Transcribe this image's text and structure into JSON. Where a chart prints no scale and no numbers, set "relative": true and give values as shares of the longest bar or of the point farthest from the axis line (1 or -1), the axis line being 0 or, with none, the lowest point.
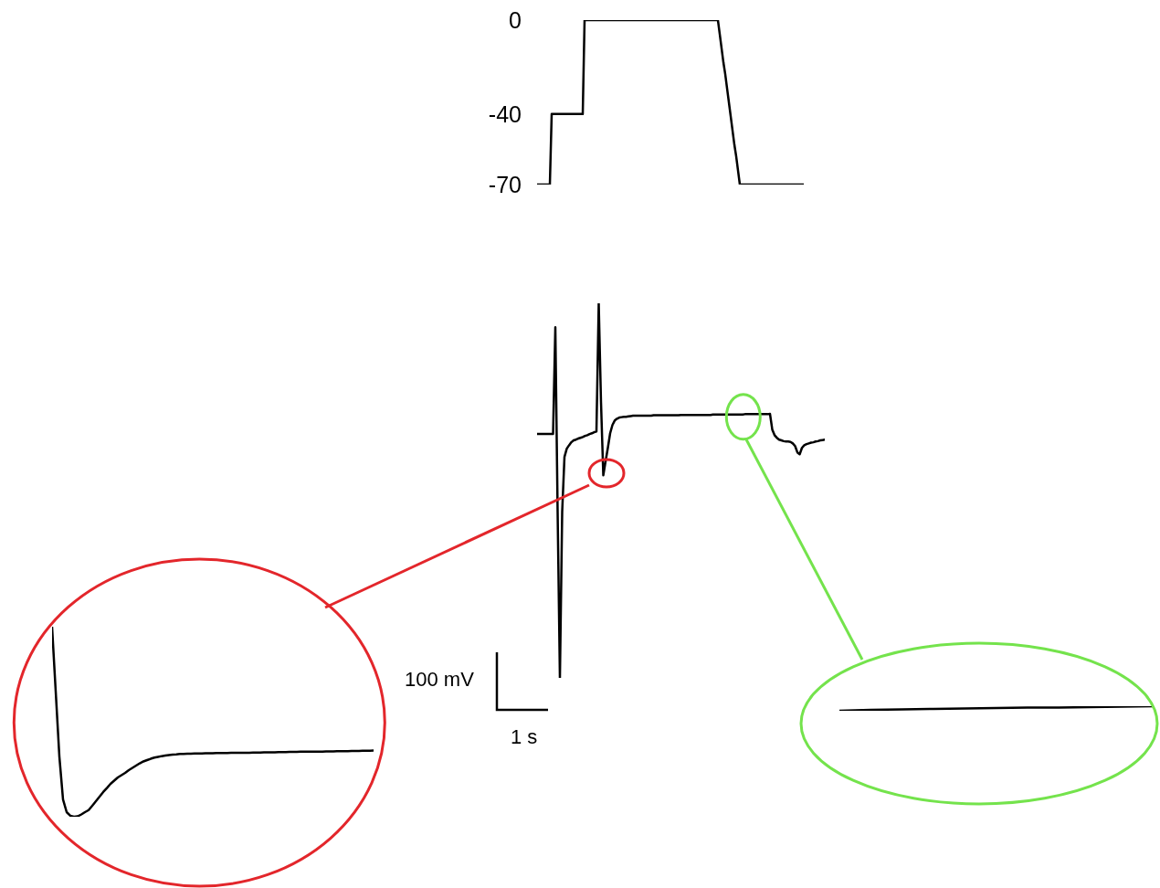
{
  "chart_data": [
    {
      "type": "line",
      "categories": [
        null,
        null,
        null,
        null,
        null,
        null,
        null,
        null,
        null,
        null,
        null,
        null,
        null,
        null,
        null,
        null,
        null,
        null,
        null,
        null,
        null,
        null,
        null,
        null,
        null,
        null,
        null,
        null,
        null,
        null,
        null,
        null,
        null,
        null,
        null,
        null,
        null,
        null,
        null,
        null,
        null,
        null,
        null,
        null,
        null,
        null,
        null,
        null,
        null,
        null,
        null,
        null,
        null,
        null,
        null,
        null,
        null,
        null,
        null,
        null,
        null,
        null,
        null,
        null,
        null,
        null,
        null,
        null,
        null,
        null,
        null,
        null,
        null,
        null,
        null,
        null,
        null,
        null,
        null,
        null,
        null,
        null,
        null,
        null,
        null,
        null,
        null,
        null,
        null,
        null,
        null,
        null,
        null,
        null,
        null,
        null,
        null,
        null,
        null,
        null,
        null,
        null,
        null,
        null,
        null,
        null,
        null,
        null,
        null,
        null,
        null,
        null,
        null,
        null,
        null,
        null,
        null,
        null,
        null,
        null,
        null,
        null,
        null,
        null,
        null,
        null,
        null,
        null,
        null,
        null,
        null,
        null,
        null,
        null,
        null,
        null,
        null,
        null,
        null,
        null,
        null,
        null,
        null,
        null,
        null,
        null,
        null
      ],
      "values": [
        -70,
        -70,
        -70,
        -70,
        -70,
        -70,
        -70,
        -70,
        -40,
        -40,
        -40,
        -40,
        -40,
        -40,
        -40,
        -40,
        -40,
        -40,
        -40,
        -40,
        -40,
        -40,
        -40,
        -40,
        -40,
        -40,
        0,
        0,
        0,
        0,
        0,
        0,
        0,
        0,
        0,
        0,
        0,
        0,
        0,
        0,
        0,
        0,
        0,
        0,
        0,
        0,
        0,
        0,
        0,
        0,
        0,
        0,
        0,
        0,
        0,
        0,
        0,
        0,
        0,
        0,
        0,
        0,
        0,
        0,
        0,
        0,
        0,
        0,
        0,
        0,
        0,
        0,
        0,
        0,
        0,
        0,
        0,
        0,
        0,
        0,
        0,
        0,
        0,
        0,
        0,
        0,
        0,
        0,
        0,
        0,
        0,
        0,
        0,
        0,
        0,
        0,
        0,
        0,
        0,
        0,
        -6,
        -12,
        -18,
        -23,
        -29,
        -35,
        -41,
        -47,
        -53,
        -58,
        -64,
        -70,
        -70,
        -70,
        -70,
        -70,
        -70,
        -70,
        -70,
        -70,
        -70,
        -70,
        -70,
        -70,
        -70,
        -70,
        -70,
        -70,
        -70,
        -70,
        -70,
        -70,
        -70,
        -70,
        -70,
        -70,
        -70,
        -70,
        -70,
        -70,
        -70,
        -70,
        -70,
        -70,
        -70,
        -70,
        -70
      ],
      "color": "#000000",
      "ylim": [
        -70,
        0
      ],
      "yticks": [
        0,
        -40,
        -70
      ],
      "tick_labels": "y"
    },
    {
      "type": "line",
      "relative": true,
      "categories": [
        null,
        null,
        null,
        null,
        null,
        null,
        null,
        null,
        null,
        null,
        null,
        null,
        null,
        null,
        null,
        null,
        null,
        null,
        null,
        null,
        null,
        null,
        null,
        null,
        null,
        null,
        null,
        null,
        null,
        null,
        null,
        null,
        null,
        null,
        null,
        null,
        null,
        null,
        null,
        null,
        null,
        null,
        null,
        null,
        null,
        null,
        null,
        null,
        null,
        null,
        null,
        null,
        null,
        null,
        null,
        null,
        null,
        null,
        null,
        null,
        null,
        null,
        null,
        null,
        null,
        null,
        null,
        null,
        null,
        null,
        null,
        null,
        null,
        null,
        null,
        null,
        null,
        null,
        null,
        null,
        null,
        null,
        null,
        null,
        null,
        null,
        null,
        null,
        null,
        null,
        null,
        null,
        null,
        null,
        null,
        null,
        null,
        null,
        null,
        null,
        null,
        null,
        null,
        null,
        null,
        null,
        null,
        null,
        null,
        null,
        null,
        null,
        null,
        null,
        null,
        null,
        null,
        null,
        null,
        null,
        null,
        null,
        null,
        null,
        null,
        null,
        null
      ],
      "values": [
        0.651,
        0.651,
        0.651,
        0.651,
        0.651,
        0.651,
        0.651,
        0.651,
        0.936,
        0.444,
        0,
        0.444,
        0.59,
        0.612,
        0.621,
        0.629,
        0.634,
        0.636,
        0.639,
        0.641,
        0.643,
        0.646,
        0.648,
        0.651,
        0.653,
        0.656,
        0.658,
        1,
        0.736,
        0.541,
        0.578,
        0.614,
        0.653,
        0.675,
        0.687,
        0.692,
        0.695,
        0.696,
        0.697,
        0.697,
        0.698,
        0.699,
        0.7,
        0.7,
        0.7,
        0.7,
        0.7,
        0.7,
        0.7,
        0.7,
        0.7,
        0.701,
        0.701,
        0.701,
        0.701,
        0.701,
        0.701,
        0.701,
        0.701,
        0.701,
        0.701,
        0.701,
        0.701,
        0.702,
        0.702,
        0.702,
        0.702,
        0.702,
        0.702,
        0.702,
        0.702,
        0.702,
        0.702,
        0.702,
        0.702,
        0.702,
        0.702,
        0.703,
        0.703,
        0.703,
        0.703,
        0.703,
        0.703,
        0.703,
        0.703,
        0.703,
        0.703,
        0.703,
        0.703,
        0.703,
        0.703,
        0.704,
        0.704,
        0.704,
        0.704,
        0.704,
        0.704,
        0.704,
        0.704,
        0.704,
        0.704,
        0.704,
        0.705,
        0.663,
        0.648,
        0.641,
        0.636,
        0.634,
        0.632,
        0.631,
        0.631,
        0.63,
        0.626,
        0.619,
        0.602,
        0.597,
        0.614,
        0.621,
        0.624,
        0.626,
        0.628,
        0.629,
        0.631,
        0.632,
        0.634,
        0.635,
        0.636
      ],
      "color": "#000000",
      "tick_labels": false,
      "annotations": [
        "100 mV",
        "1 s"
      ]
    },
    {
      "type": "line",
      "relative": true,
      "categories": [
        null,
        null,
        null,
        null,
        null,
        null,
        null,
        null,
        null,
        null,
        null,
        null,
        null,
        null,
        null,
        null,
        null,
        null,
        null,
        null,
        null,
        null,
        null,
        null,
        null,
        null,
        null,
        null,
        null,
        null,
        null,
        null,
        null,
        null,
        null,
        null,
        null,
        null,
        null,
        null,
        null,
        null,
        null,
        null,
        null,
        null,
        null,
        null,
        null,
        null,
        null,
        null,
        null,
        null,
        null,
        null,
        null,
        null,
        null,
        null,
        null,
        null,
        null,
        null,
        null,
        null,
        null,
        null,
        null,
        null,
        null,
        null,
        null,
        null,
        null,
        null,
        null,
        null,
        null,
        null,
        null,
        null,
        null,
        null,
        null,
        null,
        null,
        null,
        null
      ],
      "values": [
        1,
        0.659,
        0.317,
        0.091,
        0.024,
        0.005,
        0,
        0.002,
        0.012,
        0.024,
        0.035,
        0.058,
        0.082,
        0.106,
        0.13,
        0.151,
        0.173,
        0.19,
        0.207,
        0.219,
        0.231,
        0.245,
        0.257,
        0.269,
        0.281,
        0.291,
        0.298,
        0.305,
        0.311,
        0.315,
        0.319,
        0.322,
        0.325,
        0.327,
        0.328,
        0.33,
        0.331,
        0.332,
        0.332,
        0.333,
        0.333,
        0.333,
        0.334,
        0.334,
        0.334,
        0.335,
        0.335,
        0.335,
        0.335,
        0.336,
        0.336,
        0.336,
        0.337,
        0.337,
        0.337,
        0.338,
        0.338,
        0.338,
        0.339,
        0.339,
        0.339,
        0.339,
        0.34,
        0.34,
        0.34,
        0.341,
        0.341,
        0.341,
        0.342,
        0.342,
        0.342,
        0.342,
        0.343,
        0.343,
        0.343,
        0.344,
        0.344,
        0.344,
        0.345,
        0.345,
        0.345,
        0.345,
        0.346,
        0.346,
        0.346,
        0.347,
        0.347,
        0.347,
        0.348
      ],
      "color": "#000000",
      "tick_labels": false
    },
    {
      "type": "line",
      "relative": true,
      "categories": [
        null,
        null,
        null,
        null,
        null,
        null,
        null,
        null,
        null,
        null,
        null
      ],
      "values": [
        0,
        0.2,
        0.3,
        0.4,
        0.5,
        0.6,
        0.7,
        0.7,
        0.8,
        0.9,
        1
      ],
      "color": "#000000",
      "tick_labels": false
    }
  ]
}
